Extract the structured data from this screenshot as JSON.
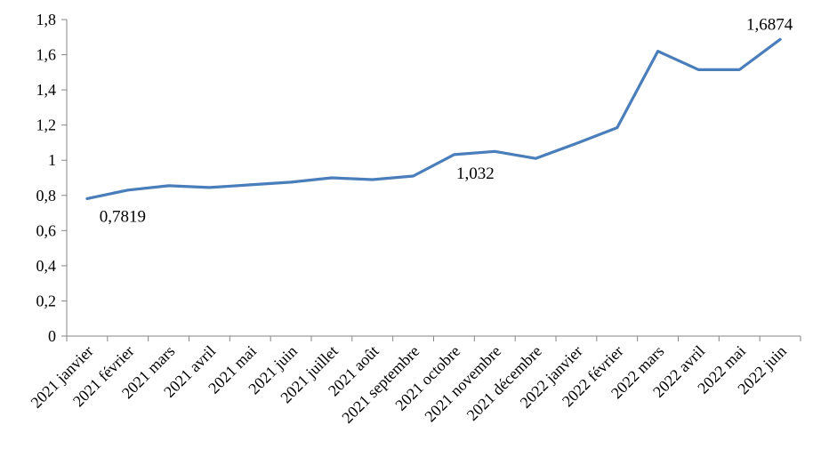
{
  "chart_data": {
    "type": "line",
    "title": "",
    "xlabel": "",
    "ylabel": "",
    "categories": [
      "2021 janvier",
      "2021 février",
      "2021 mars",
      "2021 avril",
      "2021 mai",
      "2021 juin",
      "2021 juillet",
      "2021 août",
      "2021 septembre",
      "2021 octobre",
      "2021 novembre",
      "2021 décembre",
      "2022 janvier",
      "2022 février",
      "2022 mars",
      "2022 avril",
      "2022 mai",
      "2022 juin"
    ],
    "series": [
      {
        "values": [
          0.7819,
          0.83,
          0.855,
          0.845,
          0.86,
          0.875,
          0.9,
          0.89,
          0.91,
          1.032,
          1.05,
          1.01,
          1.095,
          1.185,
          1.62,
          1.515,
          1.515,
          1.6874
        ],
        "color": "#4A7EBB"
      }
    ],
    "ylim": [
      0,
      1.8
    ],
    "ytick_labels": [
      "0",
      "0,2",
      "0,4",
      "0,6",
      "0,8",
      "1",
      "1,2",
      "1,4",
      "1,6",
      "1,8"
    ],
    "data_labels": [
      {
        "index": 0,
        "text": "0,7819"
      },
      {
        "index": 9,
        "text": "1,032"
      },
      {
        "index": 17,
        "text": "1,6874"
      }
    ],
    "grid": false,
    "legend": "none"
  }
}
